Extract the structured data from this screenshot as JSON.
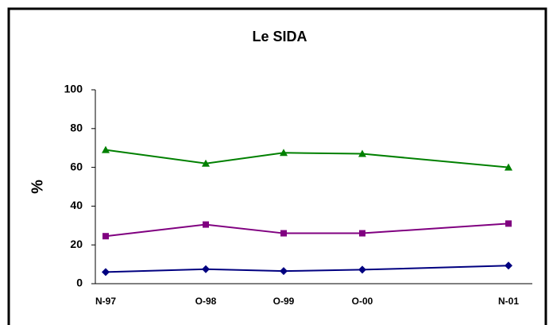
{
  "chart_data": {
    "type": "line",
    "title": "Le SIDA",
    "y_label": "%",
    "categories": [
      "N-97",
      "O-98",
      "O-99",
      "O-00",
      "N-01"
    ],
    "series": [
      {
        "color": "#008000",
        "marker": "triangle",
        "values": [
          69,
          62,
          67.5,
          67,
          60
        ]
      },
      {
        "color": "#800080",
        "marker": "square",
        "values": [
          24.5,
          30.5,
          26,
          26,
          31
        ]
      },
      {
        "color": "#000080",
        "marker": "diamond",
        "values": [
          6,
          7.5,
          6.5,
          7.2,
          9.3
        ]
      }
    ],
    "ylim": [
      0,
      100
    ],
    "yticks": [
      0,
      20,
      40,
      60,
      80,
      100
    ],
    "grid": false
  }
}
